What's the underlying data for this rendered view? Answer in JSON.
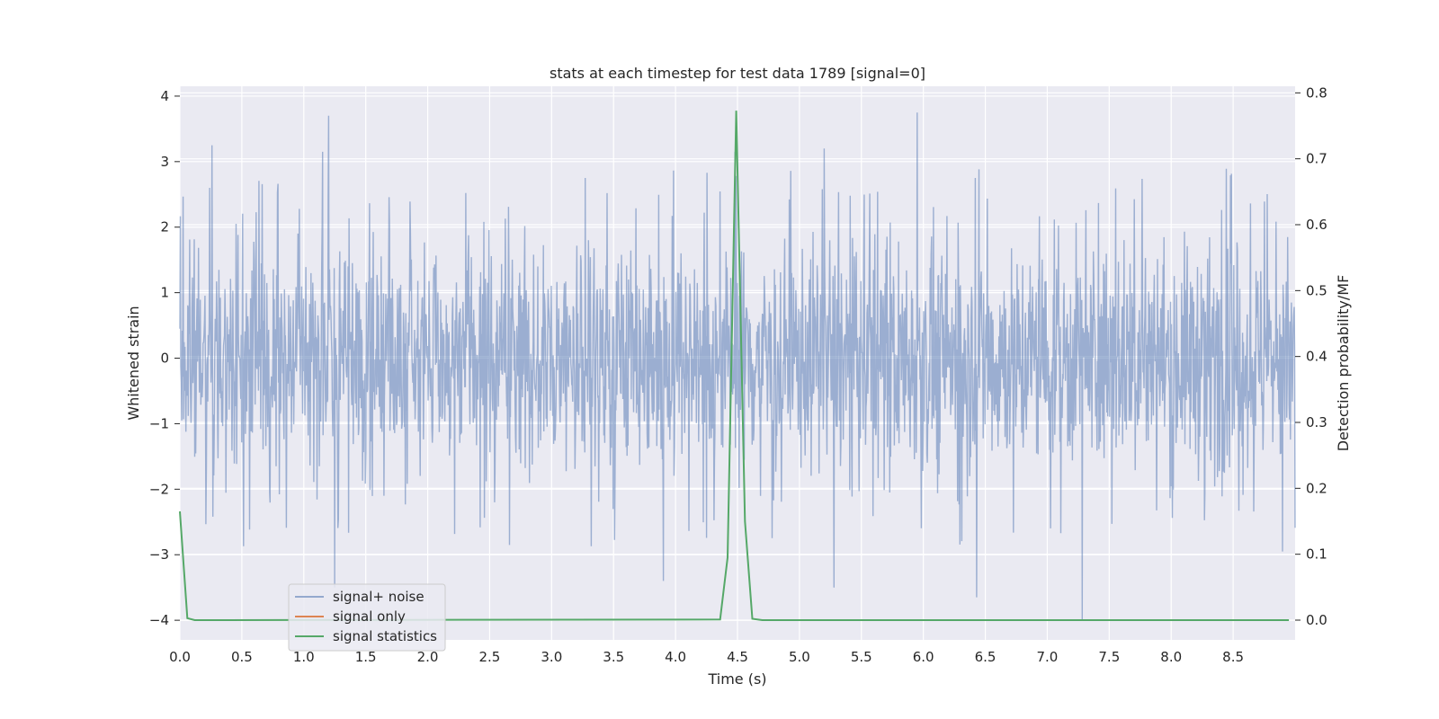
{
  "chart_data": {
    "type": "line",
    "title": "stats at each timestep for test data 1789 [signal=0]",
    "xlabel": "Time (s)",
    "ylabel_left": "Whitened strain",
    "ylabel_right": "Detection probability/MF",
    "xlim": [
      0,
      9.0
    ],
    "ylim_left": [
      -4.3,
      4.15
    ],
    "ylim_right": [
      -0.03,
      0.81
    ],
    "x_ticks": [
      0.0,
      0.5,
      1.0,
      1.5,
      2.0,
      2.5,
      3.0,
      3.5,
      4.0,
      4.5,
      5.0,
      5.5,
      6.0,
      6.5,
      7.0,
      7.5,
      8.0,
      8.5
    ],
    "x_tick_labels": [
      "0.0",
      "0.5",
      "1.0",
      "1.5",
      "2.0",
      "2.5",
      "3.0",
      "3.5",
      "4.0",
      "4.5",
      "5.0",
      "5.5",
      "6.0",
      "6.5",
      "7.0",
      "7.5",
      "8.0",
      "8.5"
    ],
    "y_left_ticks": [
      4,
      3,
      2,
      1,
      0,
      -1,
      -2,
      -3,
      -4
    ],
    "y_left_tick_labels": [
      "4",
      "3",
      "2",
      "1",
      "0",
      "−1",
      "−2",
      "−3",
      "−4"
    ],
    "y_right_ticks": [
      0.8,
      0.7,
      0.6,
      0.5,
      0.4,
      0.3,
      0.2,
      0.1,
      0.0
    ],
    "y_right_tick_labels": [
      "0.8",
      "0.7",
      "0.6",
      "0.5",
      "0.4",
      "0.3",
      "0.2",
      "0.1",
      "0.0"
    ],
    "grid": true,
    "legend_position": "lower-left",
    "series": [
      {
        "name": "signal+ noise",
        "axis": "left",
        "color": "#4c72b0",
        "kind": "noise",
        "approx_range": [
          -4.0,
          3.8
        ],
        "peaks": [
          {
            "x": 0.26,
            "y": 3.25
          },
          {
            "x": 1.2,
            "y": 3.7
          },
          {
            "x": 1.15,
            "y": 3.15
          },
          {
            "x": 1.25,
            "y": -3.5
          },
          {
            "x": 3.9,
            "y": -3.4
          },
          {
            "x": 4.48,
            "y": 3.15
          },
          {
            "x": 5.2,
            "y": 3.2
          },
          {
            "x": 5.28,
            "y": -3.5
          },
          {
            "x": 5.95,
            "y": 3.75
          },
          {
            "x": 6.43,
            "y": -3.65
          },
          {
            "x": 7.28,
            "y": 3.65
          },
          {
            "x": 7.28,
            "y": -4.0
          },
          {
            "x": 8.9,
            "y": 2.85
          },
          {
            "x": 8.9,
            "y": -2.95
          }
        ]
      },
      {
        "name": "signal only",
        "axis": "left",
        "color": "#dd8452",
        "x": [],
        "y": []
      },
      {
        "name": "signal statistics",
        "axis": "right",
        "color": "#55a868",
        "x": [
          0.0,
          0.06,
          0.12,
          0.2,
          4.36,
          4.42,
          4.49,
          4.56,
          4.62,
          4.7,
          8.95
        ],
        "y": [
          0.165,
          0.003,
          0.0,
          0.0,
          0.001,
          0.095,
          0.773,
          0.15,
          0.002,
          0.0,
          0.0
        ]
      }
    ]
  }
}
